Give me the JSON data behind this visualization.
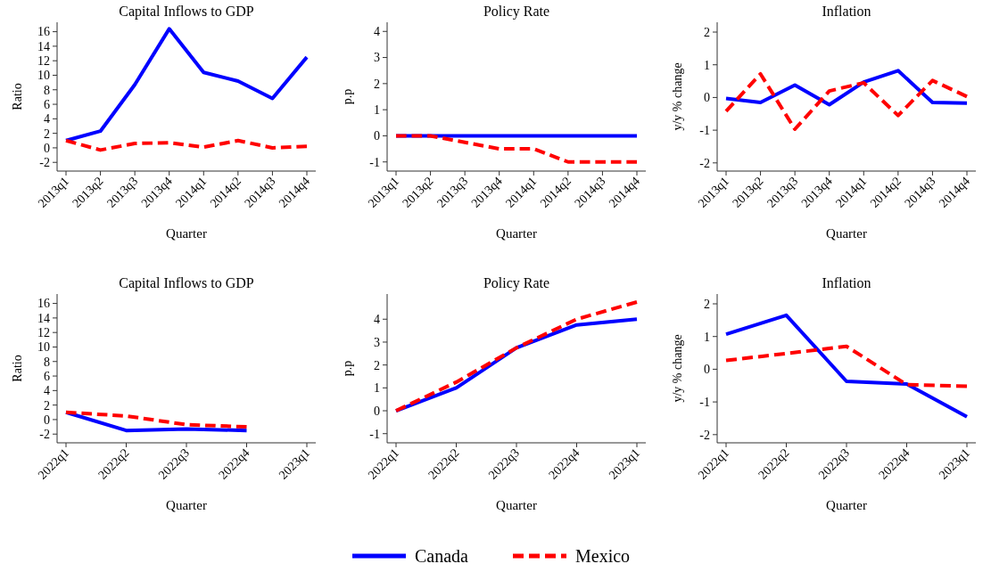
{
  "chart_data": [
    {
      "type": "line",
      "title": "Capital Inflows to GDP",
      "xlabel": "Quarter",
      "ylabel": "Ratio",
      "categories": [
        "2013q1",
        "2013q2",
        "2013q3",
        "2013q4",
        "2014q1",
        "2014q2",
        "2014q3",
        "2014q4"
      ],
      "ylim": [
        -3.2,
        17.3
      ],
      "yticks": [
        -2,
        0,
        2,
        4,
        6,
        8,
        10,
        12,
        14,
        16
      ],
      "legend": "bottom",
      "series": [
        {
          "name": "Canada",
          "color": "#0000ff",
          "line_style": "solid",
          "values": [
            1.0,
            2.3,
            8.7,
            16.4,
            10.4,
            9.2,
            6.8,
            12.5
          ]
        },
        {
          "name": "Mexico",
          "color": "#ff0000",
          "line_style": "dashed",
          "values": [
            1.0,
            -0.3,
            0.6,
            0.7,
            0.1,
            1.0,
            0.0,
            0.2
          ]
        }
      ]
    },
    {
      "type": "line",
      "title": "Policy Rate",
      "xlabel": "Quarter",
      "ylabel": "p.p",
      "categories": [
        "2013q1",
        "2013q2",
        "2013q3",
        "2013q4",
        "2014q1",
        "2014q2",
        "2014q3",
        "2014q4"
      ],
      "ylim": [
        -1.35,
        4.35
      ],
      "yticks": [
        -1,
        0,
        1,
        2,
        3,
        4
      ],
      "series": [
        {
          "color": "#0000ff",
          "line_style": "solid",
          "values": [
            0,
            0,
            0,
            0,
            0,
            0,
            0,
            0
          ]
        },
        {
          "color": "#ff0000",
          "line_style": "dashed",
          "values": [
            0,
            0,
            -0.25,
            -0.5,
            -0.5,
            -1,
            -1,
            -1
          ]
        }
      ]
    },
    {
      "type": "line",
      "title": "Inflation",
      "xlabel": "Quarter",
      "ylabel": "y/y % change",
      "categories": [
        "2013q1",
        "2013q2",
        "2013q3",
        "2013q4",
        "2014q1",
        "2014q2",
        "2014q3",
        "2014q4"
      ],
      "ylim": [
        -2.25,
        2.3
      ],
      "yticks": [
        -2,
        -1,
        0,
        1,
        2
      ],
      "series": [
        {
          "color": "#0000ff",
          "line_style": "solid",
          "values": [
            -0.03,
            -0.15,
            0.38,
            -0.22,
            0.47,
            0.82,
            -0.15,
            -0.17
          ]
        },
        {
          "color": "#ff0000",
          "line_style": "dashed",
          "values": [
            -0.42,
            0.72,
            -0.97,
            0.2,
            0.45,
            -0.55,
            0.52,
            0.03
          ]
        }
      ]
    },
    {
      "type": "line",
      "title": "Capital Inflows to GDP",
      "xlabel": "Quarter",
      "ylabel": "Ratio",
      "categories": [
        "2022q1",
        "2022q2",
        "2022q3",
        "2022q4",
        "2023q1"
      ],
      "ylim": [
        -3.2,
        17.3
      ],
      "yticks": [
        -2,
        0,
        2,
        4,
        6,
        8,
        10,
        12,
        14,
        16
      ],
      "series": [
        {
          "color": "#0000ff",
          "line_style": "solid",
          "values": [
            1.0,
            -1.5,
            -1.3,
            -1.5,
            null
          ]
        },
        {
          "color": "#ff0000",
          "line_style": "dashed",
          "values": [
            1.0,
            0.5,
            -0.7,
            -1.0,
            null
          ]
        }
      ]
    },
    {
      "type": "line",
      "title": "Policy Rate",
      "xlabel": "Quarter",
      "ylabel": "p.p",
      "categories": [
        "2022q1",
        "2022q2",
        "2022q3",
        "2022q4",
        "2023q1"
      ],
      "ylim": [
        -1.4,
        5.1
      ],
      "yticks": [
        -1,
        0,
        1,
        2,
        3,
        4
      ],
      "series": [
        {
          "color": "#0000ff",
          "line_style": "solid",
          "values": [
            0,
            1.0,
            2.75,
            3.75,
            4.0
          ]
        },
        {
          "color": "#ff0000",
          "line_style": "dashed",
          "values": [
            0,
            1.25,
            2.75,
            4.0,
            4.75
          ]
        }
      ]
    },
    {
      "type": "line",
      "title": "Inflation",
      "xlabel": "Quarter",
      "ylabel": "y/y % change",
      "categories": [
        "2022q1",
        "2022q2",
        "2022q3",
        "2022q4",
        "2023q1"
      ],
      "ylim": [
        -2.25,
        2.3
      ],
      "yticks": [
        -2,
        -1,
        0,
        1,
        2
      ],
      "series": [
        {
          "color": "#0000ff",
          "line_style": "solid",
          "values": [
            1.07,
            1.65,
            -0.37,
            -0.45,
            -1.45
          ]
        },
        {
          "color": "#ff0000",
          "line_style": "dashed",
          "values": [
            0.27,
            0.48,
            0.7,
            -0.47,
            -0.52
          ]
        }
      ]
    }
  ]
}
